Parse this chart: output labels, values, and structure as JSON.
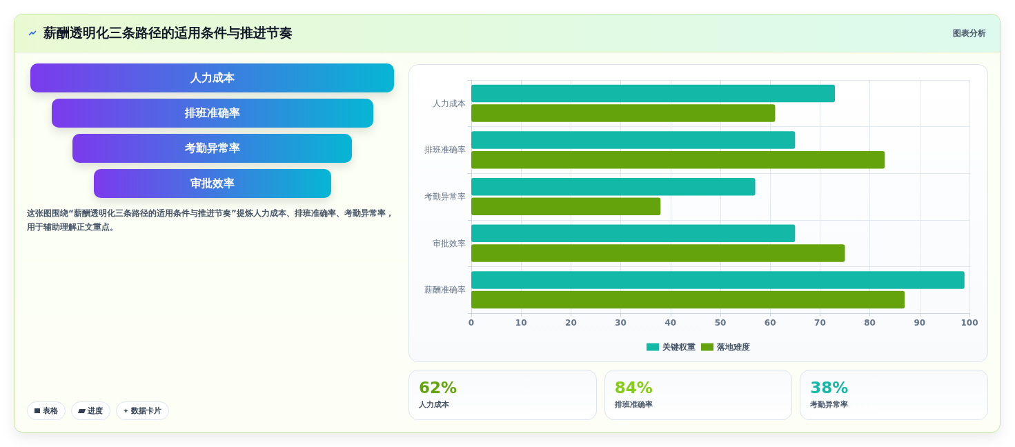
{
  "chart_data": [
    {
      "type": "other",
      "title": "薪酬透明化三条路径的适用条件与推进节奏",
      "categories": [
        "人力成本",
        "排班准确率",
        "考勤异常率",
        "审批效率"
      ],
      "annotations": [
        "图表分析",
        "这张图围绕“薪酬透明化三条路径的适用条件与推进节奏”提炼人力成本、排班准确率、考勤异常率，用于辅助理解正文重点。",
        "表格",
        "进度",
        "数据卡片"
      ]
    },
    {
      "type": "bar",
      "orientation": "horizontal",
      "categories": [
        "人力成本",
        "排班准确率",
        "考勤异常率",
        "审批效率",
        "薪酬准确率"
      ],
      "series": [
        {
          "name": "关键权重",
          "color": "#14b8a6",
          "values": [
            73,
            65,
            57,
            65,
            99
          ]
        },
        {
          "name": "落地难度",
          "color": "#65a30d",
          "values": [
            61,
            83,
            38,
            75,
            87
          ]
        }
      ],
      "xlim": [
        0,
        100
      ],
      "xticks": [
        0,
        10,
        20,
        30,
        40,
        50,
        60,
        70,
        80,
        90,
        100
      ],
      "grid": true,
      "legend": "bottom"
    },
    {
      "type": "other",
      "categories": [
        "人力成本",
        "排班准确率",
        "考勤异常率"
      ],
      "annotations": [
        "62%",
        "84%",
        "38%"
      ]
    }
  ]
}
